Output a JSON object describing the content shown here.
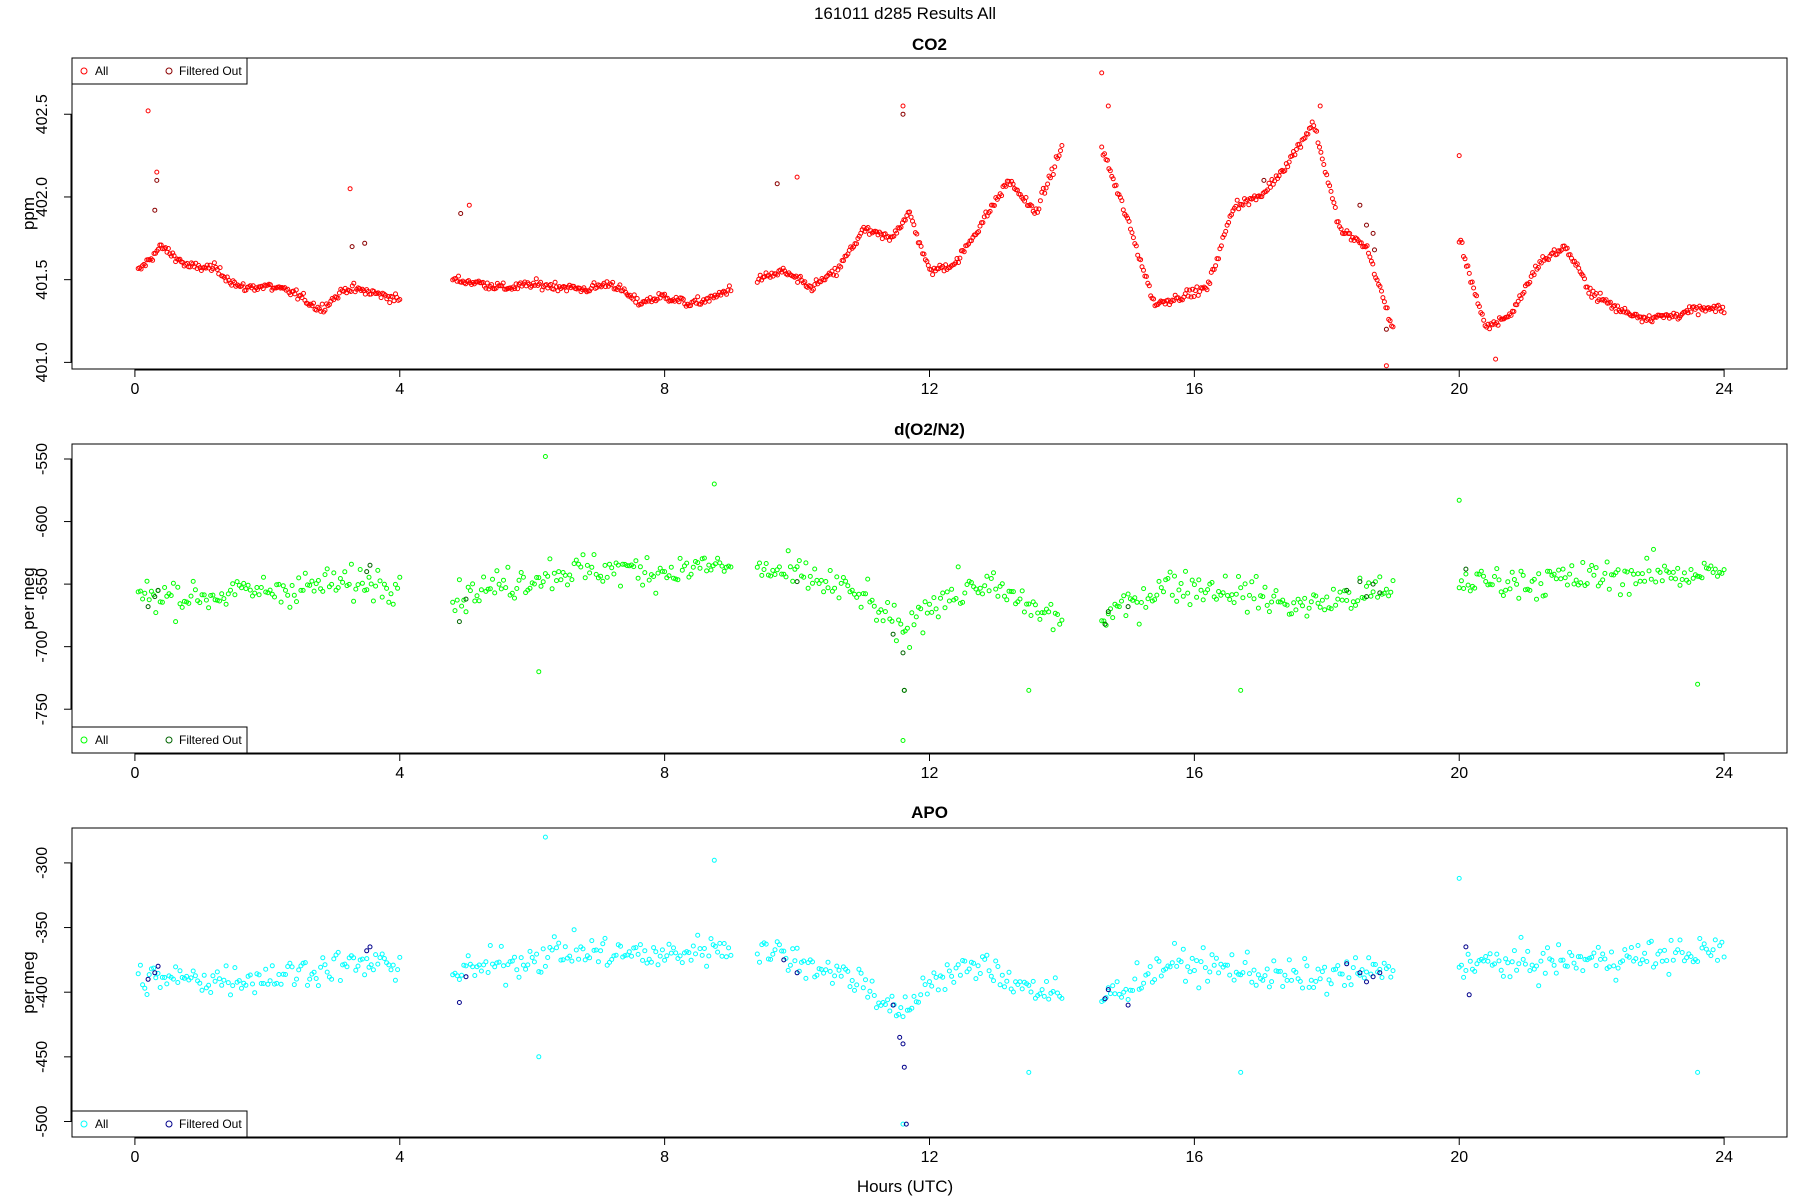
{
  "figure_title": "161011    d285    Results All",
  "xlabel": "Hours (UTC)",
  "chart_data": [
    {
      "type": "scatter",
      "title": "CO2",
      "ylabel": "ppm",
      "xlim": [
        -0.95,
        24.95
      ],
      "ylim": [
        400.96,
        402.84
      ],
      "xticks": [
        0,
        4,
        8,
        12,
        16,
        20,
        24
      ],
      "yticks": [
        401.0,
        401.5,
        402.0,
        402.5
      ],
      "ytick_labels": [
        "401.0",
        "401.5",
        "402.0",
        "402.5"
      ],
      "legend": {
        "position": "top-left",
        "entries": [
          "All",
          "Filtered Out"
        ]
      },
      "colors": {
        "all": "#ff0000",
        "filtered": "#8b0000"
      },
      "segments": [
        {
          "x": [
            0.05,
            0.4,
            0.8,
            1.2,
            1.6,
            2.0,
            2.4,
            2.8,
            3.2,
            3.6,
            4.0
          ],
          "y": [
            401.55,
            401.7,
            401.58,
            401.57,
            401.45,
            401.46,
            401.42,
            401.32,
            401.45,
            401.42,
            401.38
          ]
        },
        {
          "x": [
            4.8,
            5.2,
            5.6,
            6.0,
            6.4,
            6.8,
            7.2,
            7.6,
            8.0,
            8.4,
            8.8,
            9.0
          ],
          "y": [
            401.5,
            401.48,
            401.45,
            401.47,
            401.46,
            401.44,
            401.48,
            401.36,
            401.4,
            401.35,
            401.4,
            401.45
          ]
        },
        {
          "x": [
            9.4,
            9.8,
            10.2,
            10.6,
            11.0,
            11.4,
            11.7,
            12.0,
            12.4,
            12.8,
            13.2,
            13.6,
            14.0
          ],
          "y": [
            401.5,
            401.55,
            401.45,
            401.55,
            401.8,
            401.75,
            401.9,
            401.55,
            401.6,
            401.85,
            402.1,
            401.9,
            402.3
          ]
        },
        {
          "x": [
            14.6,
            15.0,
            15.4,
            15.8,
            16.2,
            16.6,
            17.0,
            17.4,
            17.8,
            18.2,
            18.6,
            19.0
          ],
          "y": [
            402.3,
            401.85,
            401.35,
            401.4,
            401.45,
            401.95,
            402.0,
            402.2,
            402.45,
            401.8,
            401.7,
            401.2
          ]
        },
        {
          "x": [
            20.0,
            20.4,
            20.8,
            21.2,
            21.6,
            22.0,
            22.4,
            22.8,
            23.2,
            23.6,
            24.0
          ],
          "y": [
            401.75,
            401.2,
            401.3,
            401.6,
            401.7,
            401.42,
            401.32,
            401.27,
            401.28,
            401.32,
            401.32
          ]
        }
      ],
      "spikes": [
        [
          0.2,
          402.52
        ],
        [
          0.33,
          402.15
        ],
        [
          3.25,
          402.05
        ],
        [
          5.05,
          401.95
        ],
        [
          10.0,
          402.12
        ],
        [
          11.6,
          402.55
        ],
        [
          14.6,
          402.75
        ],
        [
          14.7,
          402.55
        ],
        [
          17.9,
          402.55
        ],
        [
          18.9,
          400.98
        ],
        [
          20.0,
          402.25
        ],
        [
          20.55,
          401.02
        ]
      ],
      "filtered": [
        [
          0.3,
          401.92
        ],
        [
          0.33,
          402.1
        ],
        [
          3.28,
          401.7
        ],
        [
          3.47,
          401.72
        ],
        [
          4.92,
          401.9
        ],
        [
          9.7,
          402.08
        ],
        [
          11.6,
          402.5
        ],
        [
          17.05,
          402.1
        ],
        [
          18.5,
          401.95
        ],
        [
          18.6,
          401.83
        ],
        [
          18.7,
          401.78
        ],
        [
          18.72,
          401.68
        ],
        [
          18.9,
          401.2
        ]
      ]
    },
    {
      "type": "scatter",
      "title": "d(O2/N2)",
      "ylabel": "per meg",
      "xlim": [
        -0.95,
        24.95
      ],
      "ylim": [
        -785,
        -538
      ],
      "xticks": [
        0,
        4,
        8,
        12,
        16,
        20,
        24
      ],
      "yticks": [
        -550,
        -600,
        -650,
        -700,
        -750
      ],
      "ytick_labels": [
        "-550",
        "-600",
        "-650",
        "-700",
        "-750"
      ],
      "legend": {
        "position": "bottom-left",
        "entries": [
          "All",
          "Filtered Out"
        ]
      },
      "colors": {
        "all": "#00ff00",
        "filtered": "#006400"
      },
      "segments": [
        {
          "x": [
            0.05,
            1.0,
            2.0,
            3.0,
            4.0
          ],
          "y": [
            -658,
            -660,
            -655,
            -650,
            -648
          ]
        },
        {
          "x": [
            4.8,
            5.6,
            6.4,
            7.2,
            8.0,
            8.8,
            9.0
          ],
          "y": [
            -660,
            -650,
            -640,
            -638,
            -640,
            -635,
            -638
          ]
        },
        {
          "x": [
            9.4,
            10.2,
            11.0,
            11.6,
            12.0,
            12.8,
            13.6,
            14.0
          ],
          "y": [
            -638,
            -645,
            -660,
            -690,
            -665,
            -650,
            -670,
            -680
          ]
        },
        {
          "x": [
            14.6,
            15.6,
            16.6,
            17.6,
            18.6,
            19.0
          ],
          "y": [
            -678,
            -650,
            -655,
            -668,
            -658,
            -655
          ]
        },
        {
          "x": [
            20.0,
            21.0,
            22.0,
            23.0,
            24.0
          ],
          "y": [
            -648,
            -648,
            -645,
            -642,
            -640
          ]
        }
      ],
      "spikes": [
        [
          6.2,
          -548
        ],
        [
          6.1,
          -720
        ],
        [
          8.75,
          -570
        ],
        [
          11.6,
          -775
        ],
        [
          11.62,
          -735
        ],
        [
          13.5,
          -735
        ],
        [
          16.7,
          -735
        ],
        [
          23.6,
          -730
        ],
        [
          20.0,
          -583
        ]
      ],
      "filtered": [
        [
          0.2,
          -668
        ],
        [
          0.3,
          -660
        ],
        [
          0.35,
          -655
        ],
        [
          3.5,
          -640
        ],
        [
          3.55,
          -635
        ],
        [
          4.9,
          -680
        ],
        [
          5.0,
          -662
        ],
        [
          10.0,
          -648
        ],
        [
          11.45,
          -690
        ],
        [
          11.6,
          -705
        ],
        [
          11.62,
          -735
        ],
        [
          14.65,
          -682
        ],
        [
          14.7,
          -672
        ],
        [
          15.0,
          -668
        ],
        [
          18.3,
          -655
        ],
        [
          18.5,
          -648
        ],
        [
          18.6,
          -660
        ],
        [
          18.7,
          -650
        ],
        [
          18.8,
          -657
        ],
        [
          20.1,
          -638
        ]
      ]
    },
    {
      "type": "scatter",
      "title": "APO",
      "ylabel": "per meg",
      "xlim": [
        -0.95,
        24.95
      ],
      "ylim": [
        -512,
        -273
      ],
      "xticks": [
        0,
        4,
        8,
        12,
        16,
        20,
        24
      ],
      "yticks": [
        -300,
        -350,
        -400,
        -450,
        -500
      ],
      "ytick_labels": [
        "-300",
        "-350",
        "-400",
        "-450",
        "-500"
      ],
      "legend": {
        "position": "bottom-left",
        "entries": [
          "All",
          "Filtered Out"
        ]
      },
      "colors": {
        "all": "#00ffff",
        "filtered": "#00008b"
      },
      "segments": [
        {
          "x": [
            0.05,
            1.0,
            2.0,
            3.0,
            4.0
          ],
          "y": [
            -390,
            -390,
            -388,
            -380,
            -378
          ]
        },
        {
          "x": [
            4.8,
            5.6,
            6.4,
            7.2,
            8.0,
            8.8,
            9.0
          ],
          "y": [
            -385,
            -378,
            -368,
            -370,
            -372,
            -365,
            -365
          ]
        },
        {
          "x": [
            9.4,
            10.2,
            11.0,
            11.6,
            12.0,
            12.8,
            13.6,
            14.0
          ],
          "y": [
            -365,
            -378,
            -392,
            -420,
            -390,
            -380,
            -398,
            -405
          ]
        },
        {
          "x": [
            14.6,
            15.6,
            16.6,
            17.6,
            18.6,
            19.0
          ],
          "y": [
            -405,
            -378,
            -382,
            -390,
            -385,
            -382
          ]
        },
        {
          "x": [
            20.0,
            21.0,
            22.0,
            23.0,
            24.0
          ],
          "y": [
            -378,
            -378,
            -375,
            -372,
            -368
          ]
        }
      ],
      "spikes": [
        [
          6.2,
          -280
        ],
        [
          6.1,
          -450
        ],
        [
          8.75,
          -298
        ],
        [
          11.6,
          -502
        ],
        [
          13.5,
          -462
        ],
        [
          16.7,
          -462
        ],
        [
          23.6,
          -462
        ],
        [
          20.0,
          -312
        ]
      ],
      "filtered": [
        [
          0.2,
          -390
        ],
        [
          0.3,
          -385
        ],
        [
          0.35,
          -380
        ],
        [
          3.5,
          -368
        ],
        [
          3.55,
          -365
        ],
        [
          4.9,
          -408
        ],
        [
          5.0,
          -388
        ],
        [
          9.8,
          -375
        ],
        [
          10.0,
          -385
        ],
        [
          11.45,
          -410
        ],
        [
          11.55,
          -435
        ],
        [
          11.6,
          -440
        ],
        [
          11.62,
          -458
        ],
        [
          11.65,
          -502
        ],
        [
          14.65,
          -405
        ],
        [
          14.7,
          -398
        ],
        [
          15.0,
          -410
        ],
        [
          18.3,
          -378
        ],
        [
          18.5,
          -385
        ],
        [
          18.6,
          -392
        ],
        [
          18.7,
          -388
        ],
        [
          18.8,
          -385
        ],
        [
          20.1,
          -365
        ],
        [
          20.15,
          -402
        ]
      ]
    }
  ]
}
